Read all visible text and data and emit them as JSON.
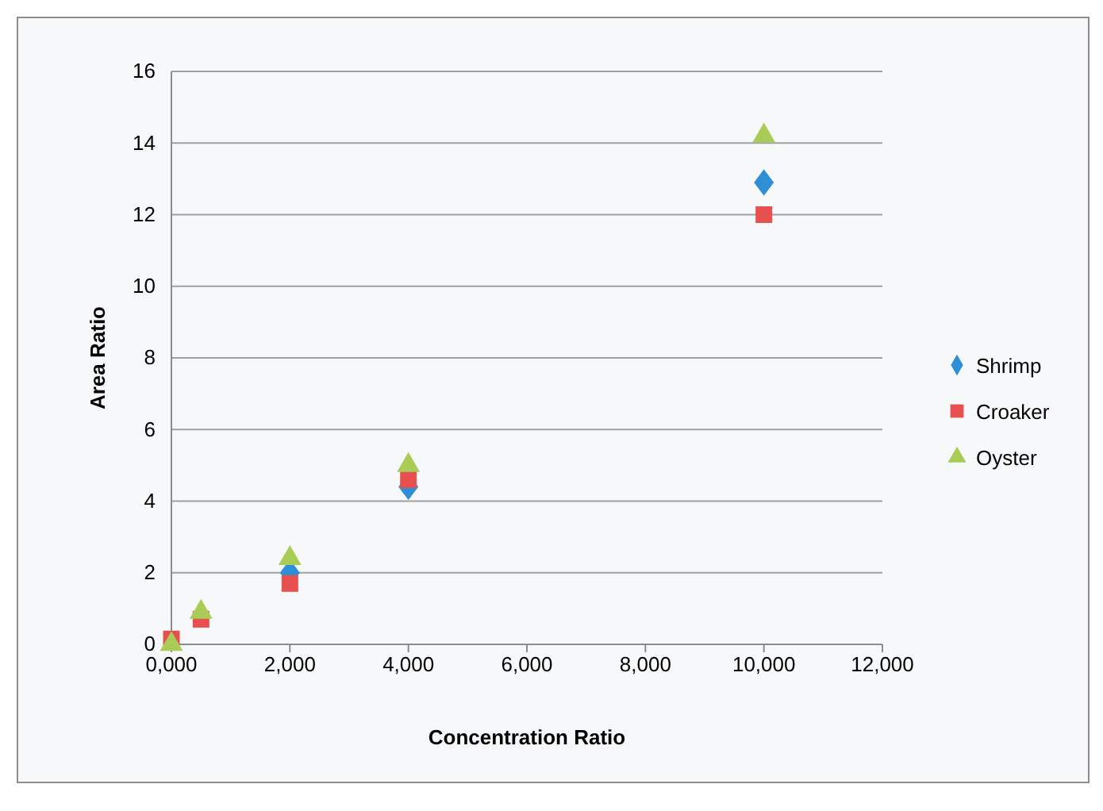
{
  "chart_data": {
    "type": "scatter",
    "xlabel": "Concentration Ratio",
    "ylabel": "Area Ratio",
    "xlim": [
      0,
      12000
    ],
    "xticks": [
      {
        "value": 0,
        "label": "0,000"
      },
      {
        "value": 2000,
        "label": "2,000"
      },
      {
        "value": 4000,
        "label": "4,000"
      },
      {
        "value": 6000,
        "label": "6,000"
      },
      {
        "value": 8000,
        "label": "8,000"
      },
      {
        "value": 10000,
        "label": "10,000"
      },
      {
        "value": 12000,
        "label": "12,000"
      }
    ],
    "ylim": [
      0,
      16
    ],
    "yticks": [
      0,
      2,
      4,
      6,
      8,
      10,
      12,
      14,
      16
    ],
    "grid": "y",
    "legend": "right",
    "series": [
      {
        "name": "Shrimp",
        "color": "#2e8fd6",
        "marker": "diamond",
        "x": [
          2000,
          4000,
          10000
        ],
        "values": [
          2.0,
          4.4,
          12.9
        ]
      },
      {
        "name": "Croaker",
        "color": "#e8504f",
        "marker": "square",
        "x": [
          0,
          500,
          2000,
          4000,
          10000
        ],
        "values": [
          0.15,
          0.7,
          1.7,
          4.6,
          12.0
        ]
      },
      {
        "name": "Oyster",
        "color": "#a8cc55",
        "marker": "triangle",
        "x": [
          0,
          500,
          2000,
          4000,
          10000
        ],
        "values": [
          0,
          0.9,
          2.4,
          5.0,
          14.2
        ]
      }
    ]
  }
}
